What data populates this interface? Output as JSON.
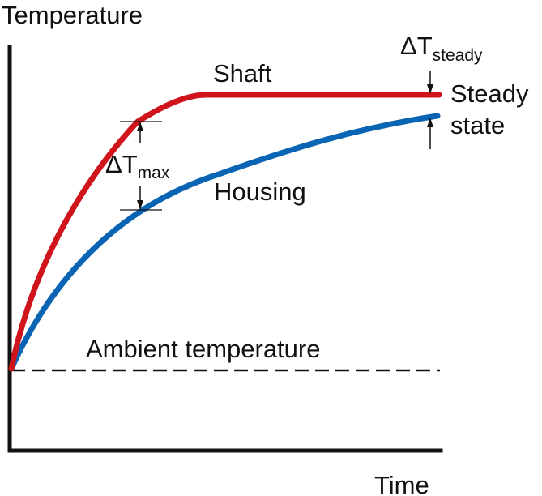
{
  "diagram": {
    "axes": {
      "y_label": "Temperature",
      "x_label": "Time"
    },
    "curves": {
      "shaft": {
        "label": "Shaft",
        "color": "#d0141c"
      },
      "housing": {
        "label": "Housing",
        "color": "#0a64b4"
      }
    },
    "ambient": {
      "label": "Ambient temperature",
      "line_style": "dashed"
    },
    "annotations": {
      "delta_max": {
        "symbol": "ΔT",
        "subscript": "max"
      },
      "delta_steady": {
        "symbol": "ΔT",
        "subscript": "steady"
      },
      "steady_state": {
        "line1": "Steady",
        "line2": "state"
      }
    },
    "colors": {
      "axis": "#111111",
      "text": "#111111"
    }
  }
}
